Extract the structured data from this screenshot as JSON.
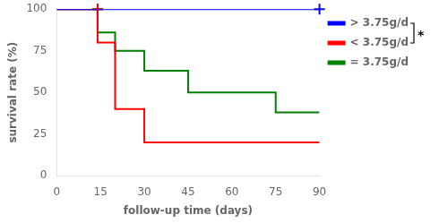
{
  "chart_data": {
    "type": "step",
    "xlabel": "follow-up time (days)",
    "ylabel": "survival rate (%)",
    "xlim": [
      0,
      90
    ],
    "ylim": [
      0,
      100
    ],
    "xticks": [
      0,
      15,
      30,
      45,
      60,
      75,
      90
    ],
    "yticks": [
      0,
      25,
      50,
      75,
      100
    ],
    "grid": false,
    "legend": "upper right",
    "series": [
      {
        "name": "> 3.75g/d",
        "color": "#0000ff",
        "marker": "+",
        "x": [
          0,
          90
        ],
        "values": [
          100,
          100
        ],
        "censored_x": [
          90
        ],
        "censored_y": [
          100
        ]
      },
      {
        "name": "< 3.75g/d",
        "color": "#ff0000",
        "marker": "+",
        "x": [
          0,
          14,
          14,
          20,
          20,
          30,
          30,
          90
        ],
        "values": [
          100,
          100,
          80,
          80,
          40,
          40,
          20,
          20
        ],
        "censored_x": [
          14
        ],
        "censored_y": [
          100
        ]
      },
      {
        "name": "= 3.75g/d",
        "color": "#008000",
        "marker": "+",
        "x": [
          0,
          14,
          14,
          20,
          20,
          30,
          30,
          45,
          45,
          60,
          60,
          75,
          75,
          90
        ],
        "values": [
          100,
          100,
          86,
          86,
          75,
          75,
          63,
          63,
          50,
          50,
          50,
          50,
          38,
          38
        ],
        "censored_x": [
          14
        ],
        "censored_y": [
          100
        ]
      }
    ],
    "annotations": [
      {
        "text": "*",
        "series": [
          "> 3.75g/d",
          "< 3.75g/d"
        ]
      }
    ]
  }
}
